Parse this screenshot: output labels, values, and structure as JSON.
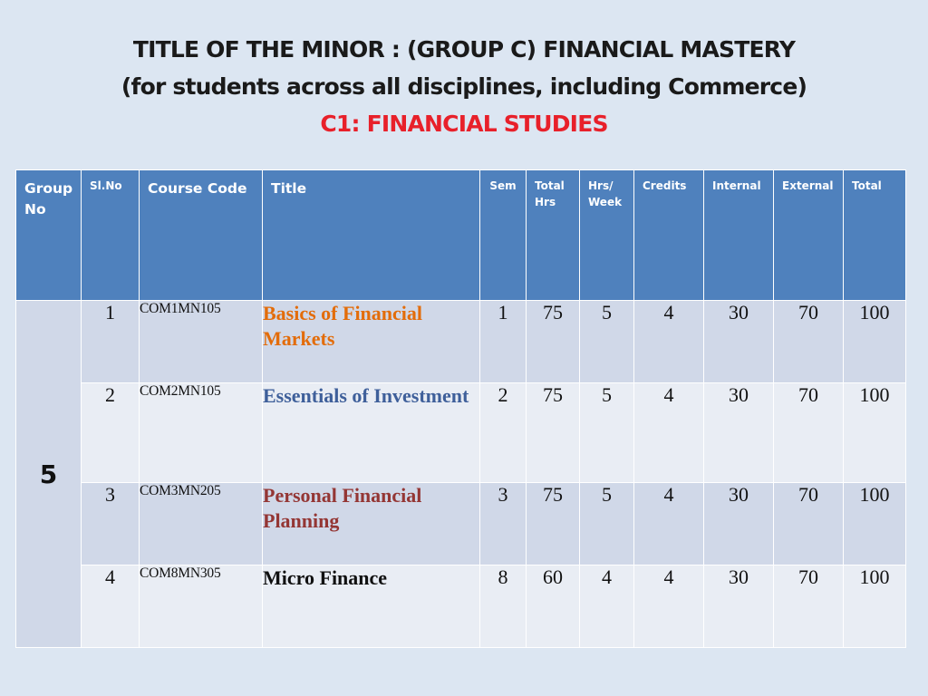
{
  "slide": {
    "title_line1": "TITLE OF THE MINOR : (GROUP C) FINANCIAL MASTERY",
    "title_line2": "(for students across all disciplines, including Commerce)",
    "title_line3": "C1: FINANCIAL STUDIES"
  },
  "colors": {
    "background": "#dce6f2",
    "header": "#4f81bd",
    "row_dark": "#d0d8e8",
    "row_light": "#e9edf4",
    "subtitle_red": "#e8202a"
  },
  "table": {
    "headers": {
      "group_no": "Group No",
      "sl_no": "Sl.No",
      "course_code": "Course Code",
      "title": "Title",
      "sem": "Sem",
      "total_hrs": "Total Hrs",
      "hrs_week": "Hrs/ Week",
      "credits": "Credits",
      "internal": "Internal",
      "external": "External",
      "total": "Total"
    },
    "group_no": "5",
    "rows": [
      {
        "sl_no": "1",
        "code": "COM1MN105",
        "title": "Basics of Financial Markets",
        "title_color": "#e36c09",
        "sem": "1",
        "total_hrs": "75",
        "hrs_week": "5",
        "credits": "4",
        "internal": "30",
        "external": "70",
        "total": "100"
      },
      {
        "sl_no": "2",
        "code": "COM2MN105",
        "title": "Essentials of Investment",
        "title_color": "#3e5f9a",
        "sem": "2",
        "total_hrs": "75",
        "hrs_week": "5",
        "credits": "4",
        "internal": "30",
        "external": "70",
        "total": "100"
      },
      {
        "sl_no": "3",
        "code": "COM3MN205",
        "title": "Personal Financial Planning",
        "title_color": "#943634",
        "sem": "3",
        "total_hrs": "75",
        "hrs_week": "5",
        "credits": "4",
        "internal": "30",
        "external": "70",
        "total": "100"
      },
      {
        "sl_no": "4",
        "code": "COM8MN305",
        "title": "Micro Finance",
        "title_color": "#111111",
        "sem": "8",
        "total_hrs": "60",
        "hrs_week": "4",
        "credits": "4",
        "internal": "30",
        "external": "70",
        "total": "100"
      }
    ]
  }
}
